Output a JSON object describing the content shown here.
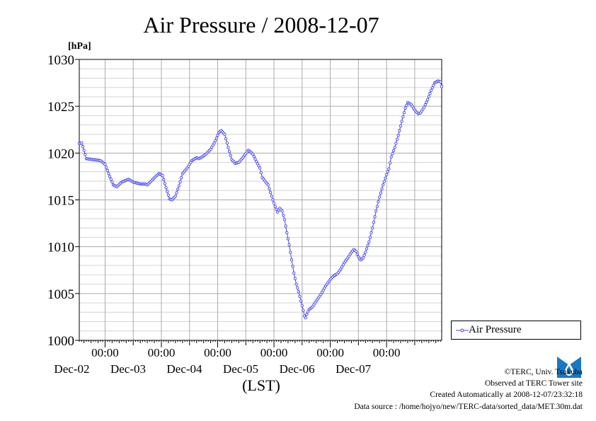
{
  "chart_data": {
    "type": "line",
    "title": "Air Pressure / 2008-12-07",
    "xlabel": "(LST)",
    "ylabel": "[hPa]",
    "ylim": [
      1000,
      1030
    ],
    "yticks": [
      "1000",
      "1005",
      "1010",
      "1015",
      "1020",
      "1025",
      "1030"
    ],
    "xlim": [
      "2008-12-01 13:00",
      "2008-12-07 23:30"
    ],
    "xticks": [
      {
        "time": "2008-12-02 00:00",
        "label": "00:00",
        "date": "Dec-02"
      },
      {
        "time": "2008-12-03 00:00",
        "label": "00:00",
        "date": "Dec-03"
      },
      {
        "time": "2008-12-04 00:00",
        "label": "00:00",
        "date": "Dec-04"
      },
      {
        "time": "2008-12-05 00:00",
        "label": "00:00",
        "date": "Dec-05"
      },
      {
        "time": "2008-12-06 00:00",
        "label": "00:00",
        "date": "Dec-06"
      },
      {
        "time": "2008-12-07 00:00",
        "label": "00:00",
        "date": "Dec-07"
      }
    ],
    "grid": true,
    "legend_position": "right",
    "series": [
      {
        "name": "Air Pressure",
        "color": "#4444ee",
        "marker": "circle",
        "interval": "30 min",
        "points": [
          [
            "2008-12-01 13:00",
            1021.0
          ],
          [
            "2008-12-01 14:00",
            1021.1
          ],
          [
            "2008-12-01 15:00",
            1020.3
          ],
          [
            "2008-12-01 16:00",
            1019.4
          ],
          [
            "2008-12-01 19:00",
            1019.3
          ],
          [
            "2008-12-01 22:00",
            1019.2
          ],
          [
            "2008-12-02 00:00",
            1018.8
          ],
          [
            "2008-12-02 02:00",
            1017.5
          ],
          [
            "2008-12-02 03:30",
            1016.6
          ],
          [
            "2008-12-02 05:00",
            1016.4
          ],
          [
            "2008-12-02 07:00",
            1016.9
          ],
          [
            "2008-12-02 09:00",
            1017.1
          ],
          [
            "2008-12-02 10:00",
            1017.2
          ],
          [
            "2008-12-02 12:00",
            1016.9
          ],
          [
            "2008-12-02 15:00",
            1016.7
          ],
          [
            "2008-12-02 17:00",
            1016.7
          ],
          [
            "2008-12-02 18:00",
            1016.6
          ],
          [
            "2008-12-02 20:00",
            1017.1
          ],
          [
            "2008-12-02 22:00",
            1017.6
          ],
          [
            "2008-12-02 23:00",
            1017.8
          ],
          [
            "2008-12-03 00:30",
            1017.6
          ],
          [
            "2008-12-03 02:00",
            1016.3
          ],
          [
            "2008-12-03 03:30",
            1015.1
          ],
          [
            "2008-12-03 04:30",
            1015.0
          ],
          [
            "2008-12-03 06:00",
            1015.4
          ],
          [
            "2008-12-03 07:30",
            1016.5
          ],
          [
            "2008-12-03 09:00",
            1017.8
          ],
          [
            "2008-12-03 11:00",
            1018.4
          ],
          [
            "2008-12-03 13:00",
            1019.2
          ],
          [
            "2008-12-03 15:00",
            1019.5
          ],
          [
            "2008-12-03 16:00",
            1019.4
          ],
          [
            "2008-12-03 17:30",
            1019.6
          ],
          [
            "2008-12-03 19:00",
            1019.9
          ],
          [
            "2008-12-03 21:00",
            1020.4
          ],
          [
            "2008-12-03 23:00",
            1021.3
          ],
          [
            "2008-12-04 00:30",
            1022.2
          ],
          [
            "2008-12-04 01:30",
            1022.4
          ],
          [
            "2008-12-04 03:00",
            1022.0
          ],
          [
            "2008-12-04 04:30",
            1020.6
          ],
          [
            "2008-12-04 06:00",
            1019.3
          ],
          [
            "2008-12-04 07:30",
            1018.9
          ],
          [
            "2008-12-04 09:00",
            1019.0
          ],
          [
            "2008-12-04 11:00",
            1019.6
          ],
          [
            "2008-12-04 13:00",
            1020.3
          ],
          [
            "2008-12-04 15:00",
            1019.9
          ],
          [
            "2008-12-04 16:30",
            1019.1
          ],
          [
            "2008-12-04 18:00",
            1018.4
          ],
          [
            "2008-12-04 19:00",
            1017.4
          ],
          [
            "2008-12-04 20:30",
            1016.9
          ],
          [
            "2008-12-04 21:30",
            1016.6
          ],
          [
            "2008-12-04 22:30",
            1015.8
          ],
          [
            "2008-12-04 23:30",
            1015.0
          ],
          [
            "2008-12-05 00:30",
            1014.3
          ],
          [
            "2008-12-05 01:30",
            1013.7
          ],
          [
            "2008-12-05 02:30",
            1014.1
          ],
          [
            "2008-12-05 03:30",
            1013.8
          ],
          [
            "2008-12-05 04:30",
            1012.9
          ],
          [
            "2008-12-05 05:30",
            1011.5
          ],
          [
            "2008-12-05 06:30",
            1010.2
          ],
          [
            "2008-12-05 07:30",
            1008.6
          ],
          [
            "2008-12-05 08:30",
            1007.2
          ],
          [
            "2008-12-05 09:30",
            1006.0
          ],
          [
            "2008-12-05 10:30",
            1005.2
          ],
          [
            "2008-12-05 11:30",
            1004.2
          ],
          [
            "2008-12-05 12:30",
            1003.2
          ],
          [
            "2008-12-05 13:00",
            1002.6
          ],
          [
            "2008-12-05 13:30",
            1002.4
          ],
          [
            "2008-12-05 14:00",
            1002.8
          ],
          [
            "2008-12-05 15:00",
            1003.3
          ],
          [
            "2008-12-05 16:30",
            1003.6
          ],
          [
            "2008-12-05 18:00",
            1004.2
          ],
          [
            "2008-12-05 20:00",
            1004.9
          ],
          [
            "2008-12-05 22:00",
            1005.8
          ],
          [
            "2008-12-06 00:00",
            1006.5
          ],
          [
            "2008-12-06 01:30",
            1006.9
          ],
          [
            "2008-12-06 03:00",
            1007.1
          ],
          [
            "2008-12-06 04:30",
            1007.6
          ],
          [
            "2008-12-06 06:00",
            1008.3
          ],
          [
            "2008-12-06 07:30",
            1008.8
          ],
          [
            "2008-12-06 09:00",
            1009.4
          ],
          [
            "2008-12-06 10:00",
            1009.7
          ],
          [
            "2008-12-06 11:00",
            1009.5
          ],
          [
            "2008-12-06 12:00",
            1008.9
          ],
          [
            "2008-12-06 13:00",
            1008.6
          ],
          [
            "2008-12-06 14:00",
            1008.8
          ],
          [
            "2008-12-06 15:00",
            1009.4
          ],
          [
            "2008-12-06 16:30",
            1010.5
          ],
          [
            "2008-12-06 18:00",
            1012.0
          ],
          [
            "2008-12-06 19:30",
            1013.8
          ],
          [
            "2008-12-06 21:00",
            1015.3
          ],
          [
            "2008-12-06 22:30",
            1016.6
          ],
          [
            "2008-12-07 00:00",
            1017.7
          ],
          [
            "2008-12-07 01:00",
            1018.3
          ],
          [
            "2008-12-07 02:00",
            1019.6
          ],
          [
            "2008-12-07 03:30",
            1020.6
          ],
          [
            "2008-12-07 05:00",
            1021.9
          ],
          [
            "2008-12-07 06:30",
            1023.4
          ],
          [
            "2008-12-07 08:00",
            1024.8
          ],
          [
            "2008-12-07 09:00",
            1025.4
          ],
          [
            "2008-12-07 10:30",
            1025.2
          ],
          [
            "2008-12-07 12:00",
            1024.6
          ],
          [
            "2008-12-07 13:30",
            1024.2
          ],
          [
            "2008-12-07 14:30",
            1024.3
          ],
          [
            "2008-12-07 16:00",
            1024.9
          ],
          [
            "2008-12-07 17:30",
            1025.7
          ],
          [
            "2008-12-07 19:00",
            1026.7
          ],
          [
            "2008-12-07 20:30",
            1027.5
          ],
          [
            "2008-12-07 22:00",
            1027.7
          ],
          [
            "2008-12-07 23:00",
            1027.6
          ],
          [
            "2008-12-07 23:30",
            1027.1
          ]
        ]
      }
    ]
  },
  "credits": {
    "copyright": "©TERC, Univ. Tsukuba",
    "observed": "Observed at TERC Tower site",
    "created": "Created Automatically at 2008-12-07/23:32:18",
    "source": "Data source : /home/hojyo/new/TERC-data/sorted_data/MET.30m.dat",
    "logo_text": "TERC"
  }
}
